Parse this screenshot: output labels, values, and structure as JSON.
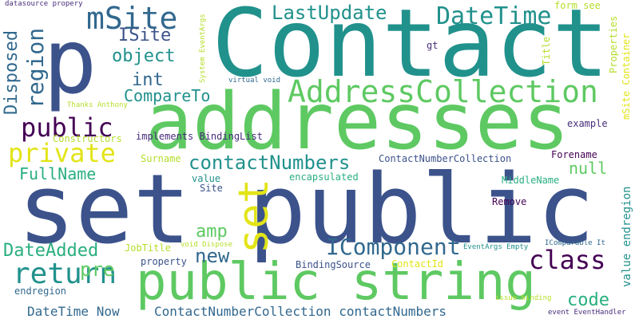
{
  "words": {
    "contact": "Contact",
    "addresses": "addresses",
    "set_public": "set public",
    "p": "p",
    "public_string": "public string",
    "set_vertical": "set",
    "address_collection": "AddressCollection",
    "msite": "mSite",
    "lastupdate": "LastUpdate",
    "datetime": "DateTime",
    "isite": "ISite",
    "object": "object",
    "int": "int",
    "region": "region",
    "disposed": "Disposed",
    "public_small": "public",
    "private": "private",
    "compareto": "CompareTo",
    "contactnumbers": "contactNumbers",
    "fullname": "FullName",
    "null": "null",
    "constructors": "Constructors",
    "surname": "Surname",
    "return": "return",
    "class": "class",
    "datedadded": "DateAdded",
    "new": "new",
    "icomponent": "IComponent",
    "pre": "pre",
    "amp": "amp",
    "code": "code",
    "datetime_now": "DateTime Now",
    "cnc_contactnumbers": "ContactNumberCollection contactNumbers",
    "contactnumbercollection": "ContactNumberCollection",
    "forename": "Forename",
    "middlename": "MiddleName",
    "remove": "Remove",
    "example": "example",
    "encapsulated": "encapsulated",
    "value": "value",
    "site": "Site",
    "jobtitle": "JobTitle",
    "void_dispose": "void Dispose",
    "property": "property",
    "bindingsource": "BindingSource",
    "contactid": "ContactId",
    "eventargs_empty": "EventArgs Empty",
    "icomparable_it": "IComparable It",
    "issue_binding": "issue binding",
    "event_eventhandler": "event EventHandler",
    "endregion": "endregion",
    "datasource_propery": "datasource propery",
    "implements_bindinglist": "implements BindingList",
    "form_see": "form see",
    "gt": "gt",
    "title": "Title",
    "properties": "Properties",
    "msite_container": "mSite Container",
    "value_endregion": "value endregion",
    "system_eventargs": "System EventArgs",
    "virtual_void": "virtual void",
    "thanks_anthony": "Thanks Anthony"
  }
}
